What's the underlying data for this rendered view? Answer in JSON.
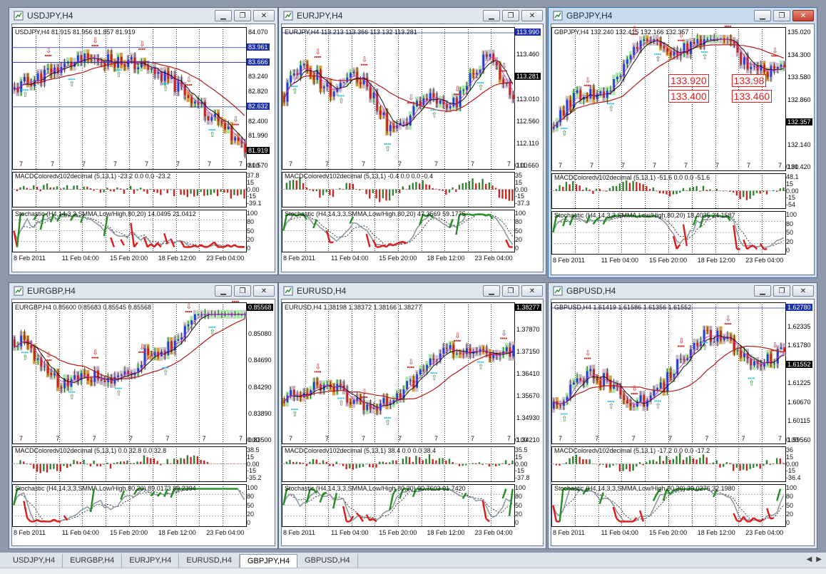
{
  "tabs": [
    {
      "label": "USDJPY,H4",
      "active": false
    },
    {
      "label": "EURGBP,H4",
      "active": false
    },
    {
      "label": "EURJPY,H4",
      "active": false
    },
    {
      "label": "EURUSD,H4",
      "active": false
    },
    {
      "label": "GBPJPY,H4",
      "active": true
    },
    {
      "label": "GBPUSD,H4",
      "active": false
    }
  ],
  "window_buttons": {
    "minimize": "▁",
    "restore": "❐",
    "close": "✕"
  },
  "tab_arrows": {
    "left": "◀",
    "right": "▶"
  },
  "windows": [
    {
      "id": "usdjpy",
      "title": "USDJPY,H4",
      "active": false,
      "info": "USDJPY,H4  81.915 81.956 81.857 81.919",
      "current_price": "81.919",
      "main_ticks": [
        "84.070",
        "83.961",
        "83.666",
        "83.240",
        "82.820",
        "82.632",
        "82.400",
        "81.990",
        "81.919",
        "81.570"
      ],
      "highlight_labels": [
        {
          "text": "83.961",
          "kind": "blue"
        },
        {
          "text": "83.666",
          "kind": "blue"
        },
        {
          "text": "82.632",
          "kind": "blue"
        }
      ],
      "sevens": [
        "7",
        "7",
        "7",
        "7",
        "7",
        "7",
        "7",
        "7"
      ],
      "macd_label": "MACDColoredv102decimal (5,13,1) -23.2 0.0 0.0 -23.2",
      "macd_ticks": [
        "37.8",
        "15",
        "0.00",
        "-15",
        "-39.1"
      ],
      "zero_tick": "0.00",
      "stoch_label": "Stochastic (H4,14,3,3,SMMA,Low/High,80,20) 14.0495 21.0412",
      "stoch_ticks": [
        "100",
        "80",
        "50",
        "20",
        "0"
      ],
      "dates": [
        "8 Feb 2011",
        "11 Feb 04:00",
        "15 Feb 20:00",
        "18 Feb 12:00",
        "23 Feb 04:00"
      ],
      "boxes": [],
      "trend": "down"
    },
    {
      "id": "eurjpy",
      "title": "EURJPY,H4",
      "active": false,
      "info": "EURJPY,H4  113.213 113.366 113.132 113.281",
      "current_price": "113.281",
      "main_ticks": [
        "113.990",
        "113.460",
        "113.281",
        "113.010",
        "112.560",
        "112.110",
        "111.660"
      ],
      "highlight_labels": [
        {
          "text": "113.990",
          "kind": "blue"
        }
      ],
      "sevens": [
        "7",
        "7",
        "7",
        "7",
        "7",
        "7",
        "7"
      ],
      "macd_label": "MACDColoredv102decimal (5,13,1) -0.4 0.0 0.0 -0.4",
      "macd_ticks": [
        "35",
        "15",
        "0.00",
        "-15",
        "-37.3"
      ],
      "zero_tick": "0.00",
      "stoch_label": "Stochastic (H4,14,3,3,SMMA,Low/High,80,20) 47.3569 59.1775",
      "stoch_ticks": [
        "100",
        "80",
        "50",
        "20",
        "0"
      ],
      "dates": [
        "8 Feb 2011",
        "11 Feb 04:00",
        "15 Feb 20:00",
        "18 Feb 12:00",
        "23 Feb 04:00"
      ],
      "boxes": [],
      "trend": "flat"
    },
    {
      "id": "gbpjpy",
      "title": "GBPJPY,H4",
      "active": true,
      "info": "GBPJPY,H4  132.240 132.415 132.166 132.357",
      "current_price": "132.357",
      "main_ticks": [
        "135.020",
        "134.300",
        "133.580",
        "132.860",
        "132.357",
        "132.140",
        "131.420"
      ],
      "highlight_labels": [],
      "sevens": [
        "7",
        "7",
        "7",
        "7",
        "7",
        "7",
        "7",
        "7"
      ],
      "macd_label": "MACDColoredv102decimal (5,13,1) -51.6 0.0 0.0 -51.6",
      "macd_ticks": [
        "48.1",
        "15",
        "0.00",
        "-15",
        "-54"
      ],
      "zero_tick": "0.00",
      "stoch_label": "Stochastic (H4,14,3,3,SMMA,Low/High,80,20) 18.4035 24.1587",
      "stoch_ticks": [
        "100",
        "80",
        "50",
        "20",
        "0"
      ],
      "dates": [
        "8 Feb 2011",
        "11 Feb 04:00",
        "15 Feb 20:00",
        "18 Feb 12:00",
        "23 Feb 04:00"
      ],
      "boxes": [
        "133.920",
        "133.98",
        "133.400",
        "133.460"
      ],
      "trend": "upthendown"
    },
    {
      "id": "eurgbp",
      "title": "EURGBP,H4",
      "active": false,
      "info": "EURGBP,H4  0.85600 0.85683 0.85545 0.85568",
      "current_price": "0.85568",
      "main_ticks": [
        "0.85568",
        "0.85080",
        "0.84690",
        "0.84290",
        "0.83890",
        "0.83500"
      ],
      "highlight_labels": [],
      "sevens": [
        "7",
        "7",
        "7",
        "7",
        "7",
        "7",
        "7"
      ],
      "macd_label": "MACDColoredv102decimal (5,13,1) 0.0 32.8 0.0 32.8",
      "macd_ticks": [
        "38.5",
        "15",
        "0.00",
        "-15",
        "-35.2"
      ],
      "zero_tick": "0.00",
      "stoch_label": "Stochastic (H4,14,3,3,SMMA,Low/High,80,20) 89.0173 89.2394",
      "stoch_ticks": [
        "100",
        "80",
        "50",
        "20",
        "0"
      ],
      "dates": [
        "8 Feb 2011",
        "11 Feb 04:00",
        "15 Feb 20:00",
        "18 Feb 12:00",
        "23 Feb 04:00"
      ],
      "boxes": [],
      "trend": "downthenup"
    },
    {
      "id": "eurusd",
      "title": "EURUSD,H4",
      "active": false,
      "info": "EURUSD,H4  1.38198 1.38372 1.38166 1.38277",
      "current_price": "1.38277",
      "main_ticks": [
        "1.38277",
        "1.37870",
        "1.37150",
        "1.36410",
        "1.35670",
        "1.34930",
        "1.34210"
      ],
      "highlight_labels": [],
      "sevens": [
        "7",
        "7",
        "7",
        "7",
        "7",
        "7",
        "7"
      ],
      "macd_label": "MACDColoredv102decimal (5,13,1) 38.4 0.0 0.0 38.4",
      "macd_ticks": [
        "35.5",
        "15",
        "0.00",
        "-15",
        "-37.8"
      ],
      "zero_tick": "0.00",
      "stoch_label": "Stochastic (H4,14,3,3,SMMA,Low/High,80,20) 90.7603 91.7420",
      "stoch_ticks": [
        "100",
        "80",
        "50",
        "20",
        "0"
      ],
      "dates": [
        "8 Feb 2011",
        "11 Feb 04:00",
        "15 Feb 20:00",
        "18 Feb 12:00",
        "23 Feb 04:00"
      ],
      "boxes": [],
      "trend": "up"
    },
    {
      "id": "gbpusd",
      "title": "GBPUSD,H4",
      "active": false,
      "info": "GBPUSD,H4  1.61419 1.61586 1.61356 1.61552",
      "current_price": "1.61552",
      "main_ticks": [
        "1.62780",
        "1.62335",
        "1.61780",
        "1.61552",
        "1.61225",
        "1.60670",
        "1.60115",
        "1.59560"
      ],
      "highlight_labels": [
        {
          "text": "1.62780",
          "kind": "blue"
        }
      ],
      "sevens": [
        "7",
        "7",
        "7",
        "7",
        "7",
        "7",
        "7"
      ],
      "macd_label": "MACDColoredv102decimal (5,13,1) -17.2 0.0 0.0 -17.2",
      "macd_ticks": [
        "36",
        "15",
        "0.00",
        "-15",
        "-36.4"
      ],
      "zero_tick": "0.00",
      "stoch_label": "Stochastic (H4,14,3,3,SMMA,Low/High,80,20) 39.0276 32.1980",
      "stoch_ticks": [
        "100",
        "80",
        "50",
        "20",
        "0"
      ],
      "dates": [
        "8 Feb 2011",
        "11 Feb 04:00",
        "15 Feb 20:00",
        "18 Feb 12:00",
        "23 Feb 04:00"
      ],
      "boxes": [],
      "trend": "upwave"
    }
  ],
  "colors": {
    "bull": "#2f7f2f",
    "bear": "#c7241f",
    "candle_up": "#1e3fd9",
    "candle_down": "#c7241f",
    "orange": "#d4922b",
    "magenta": "#d32bd3",
    "cyan": "#33c2e8",
    "ma_red": "#b21a1a",
    "ma_black": "#111111",
    "stoch_main": "#8d9aa6",
    "stoch_red": "#e01a1a",
    "stoch_green": "#1f8f1f",
    "blue_label": "#1b2fa8"
  }
}
